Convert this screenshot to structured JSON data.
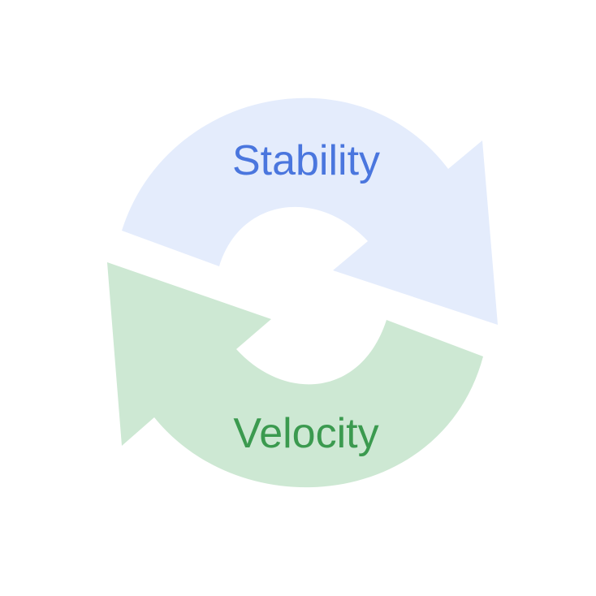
{
  "diagram": {
    "top_arrow": {
      "label": "Stability",
      "fill_color": "#e4ecfc",
      "text_color": "#4a76de"
    },
    "bottom_arrow": {
      "label": "Velocity",
      "fill_color": "#cde8d3",
      "text_color": "#3b9a4f"
    }
  }
}
